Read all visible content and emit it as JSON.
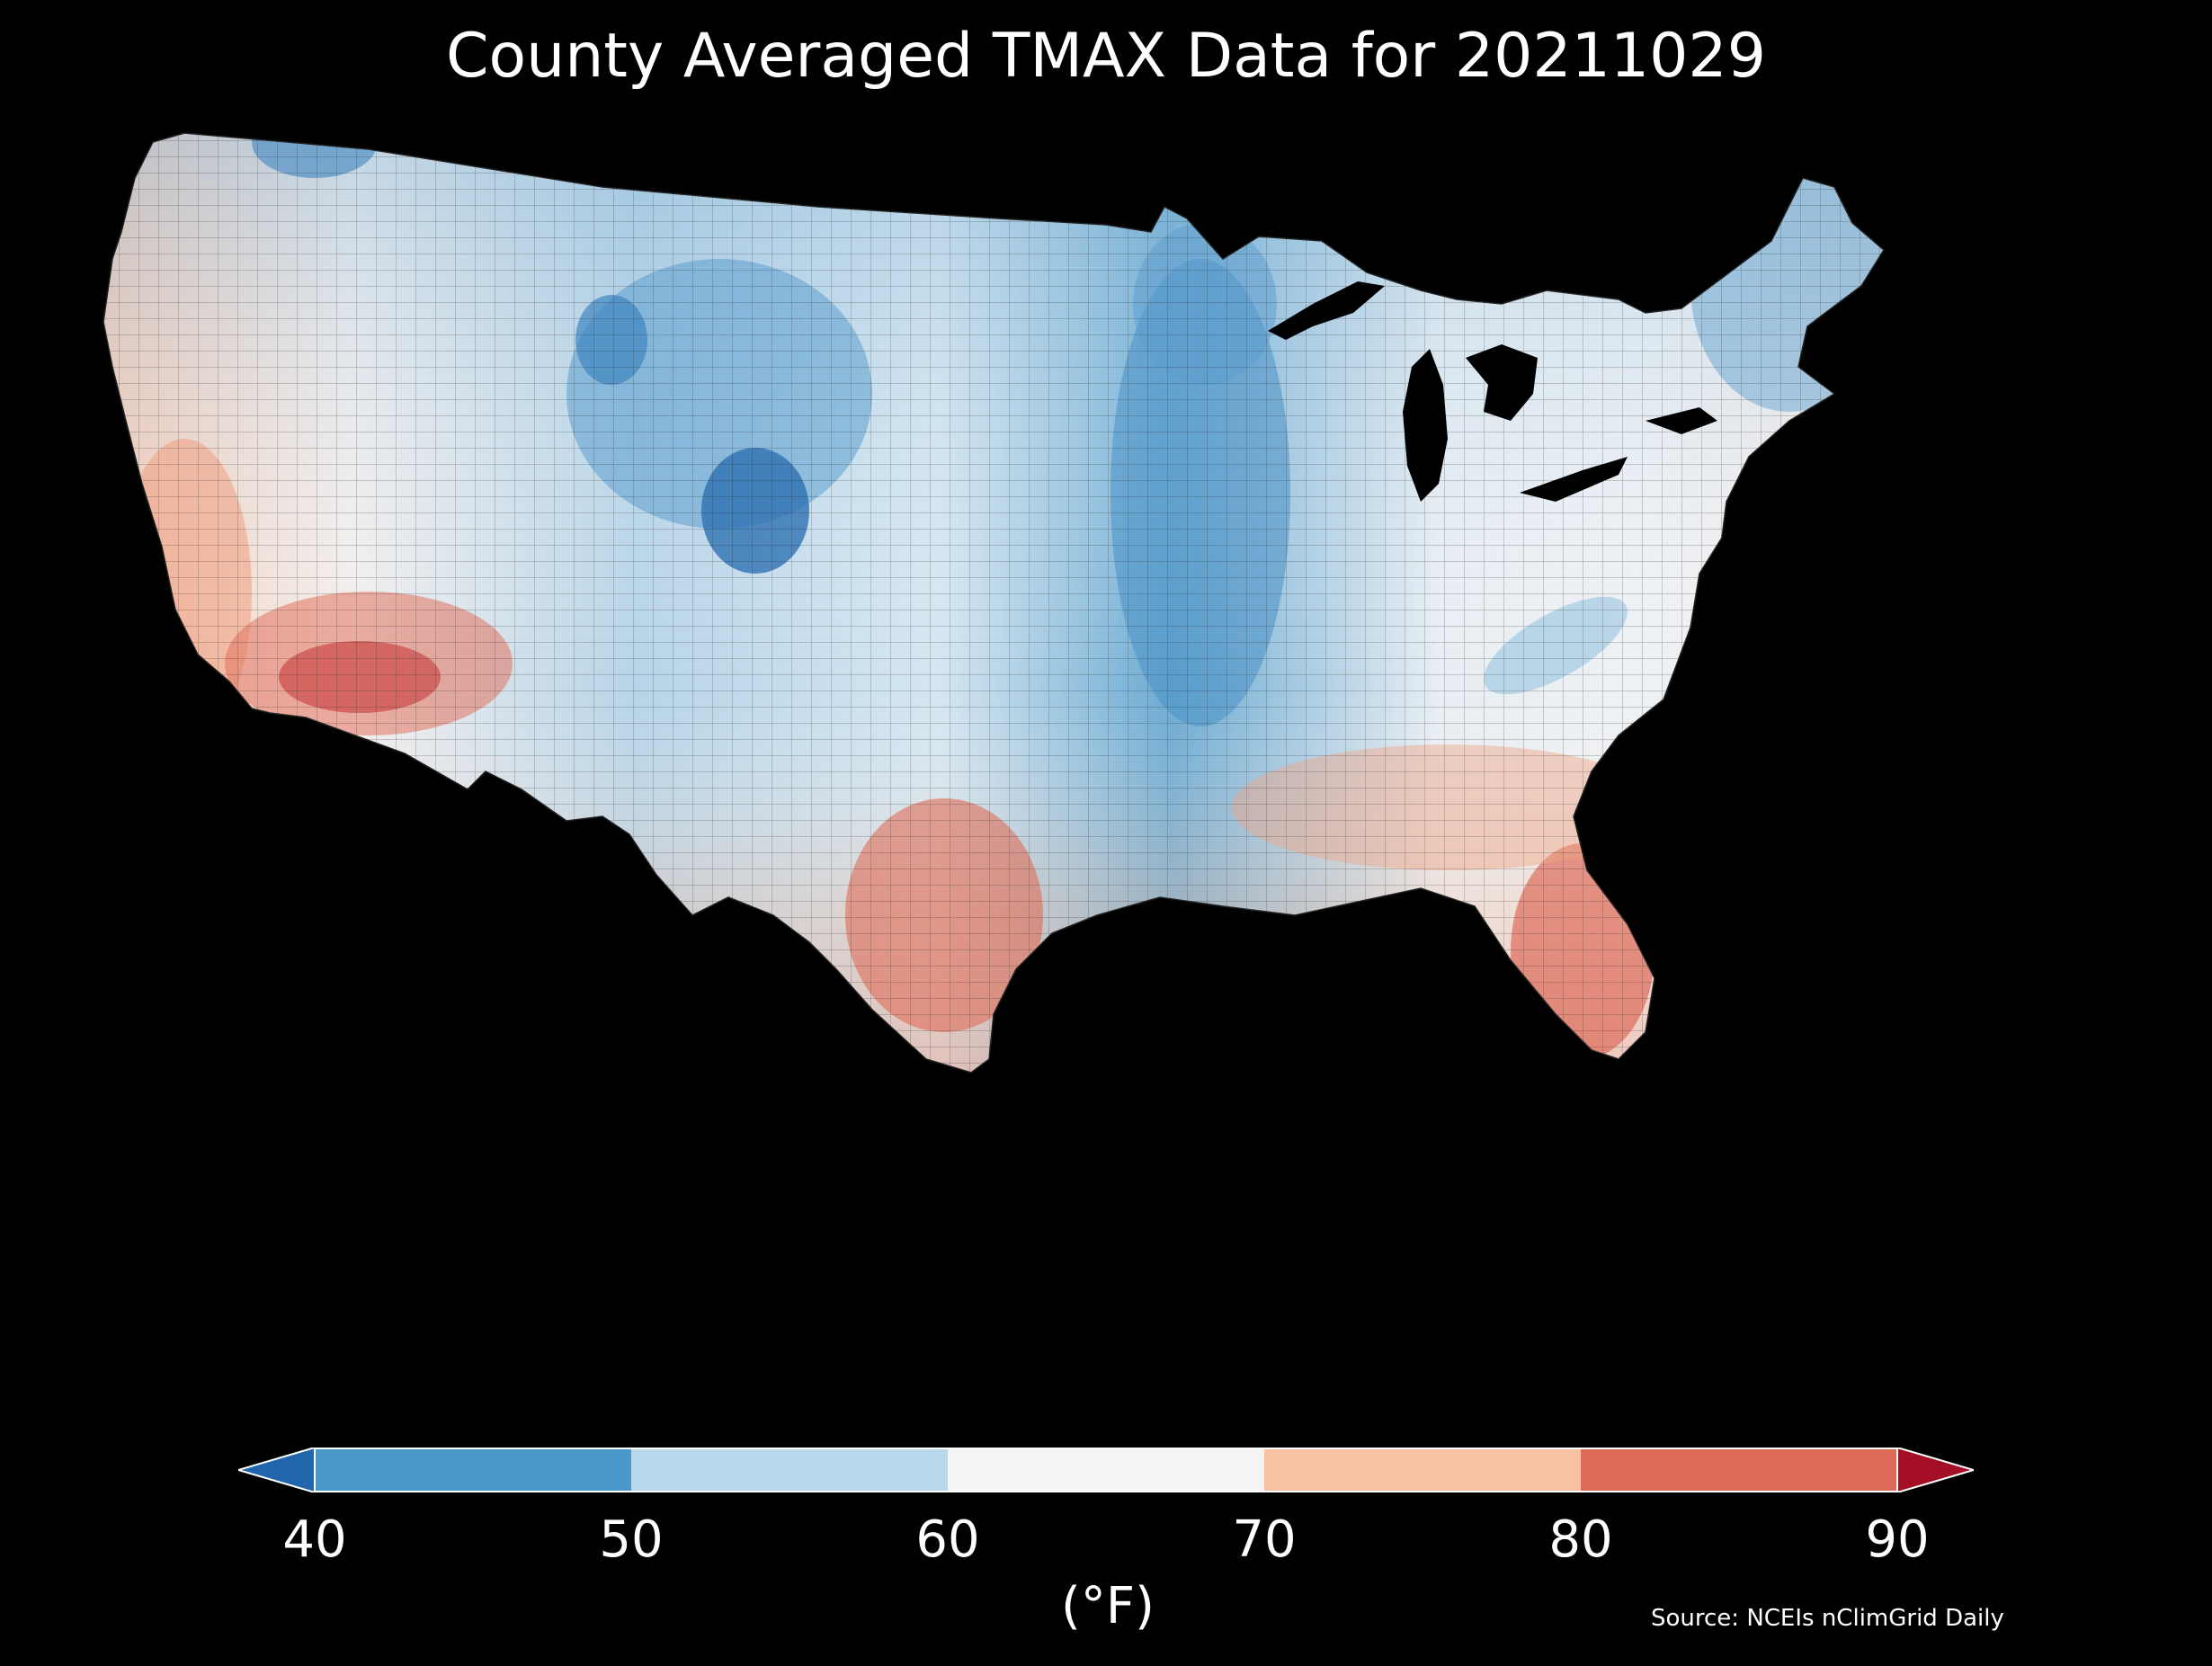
{
  "title": "County Averaged TMAX Data for 20211029",
  "colorbar": {
    "ticks": [
      "40",
      "50",
      "60",
      "70",
      "80",
      "90"
    ],
    "unit": "(°F)",
    "bins": [
      {
        "range": [
          40,
          50
        ],
        "color": "#4a98c9"
      },
      {
        "range": [
          50,
          60
        ],
        "color": "#b7d8ea"
      },
      {
        "range": [
          60,
          70
        ],
        "color": "#f5f5f5"
      },
      {
        "range": [
          70,
          80
        ],
        "color": "#f8c1a3"
      },
      {
        "range": [
          80,
          90
        ],
        "color": "#dc6b58"
      }
    ],
    "under_color": "#2166ac",
    "over_color": "#a50f26"
  },
  "source": "Source: NCEIs nClimGrid Daily",
  "map": {
    "region": "Contiguous United States",
    "variable": "TMAX",
    "aggregation": "County averaged",
    "background": "#000000"
  }
}
